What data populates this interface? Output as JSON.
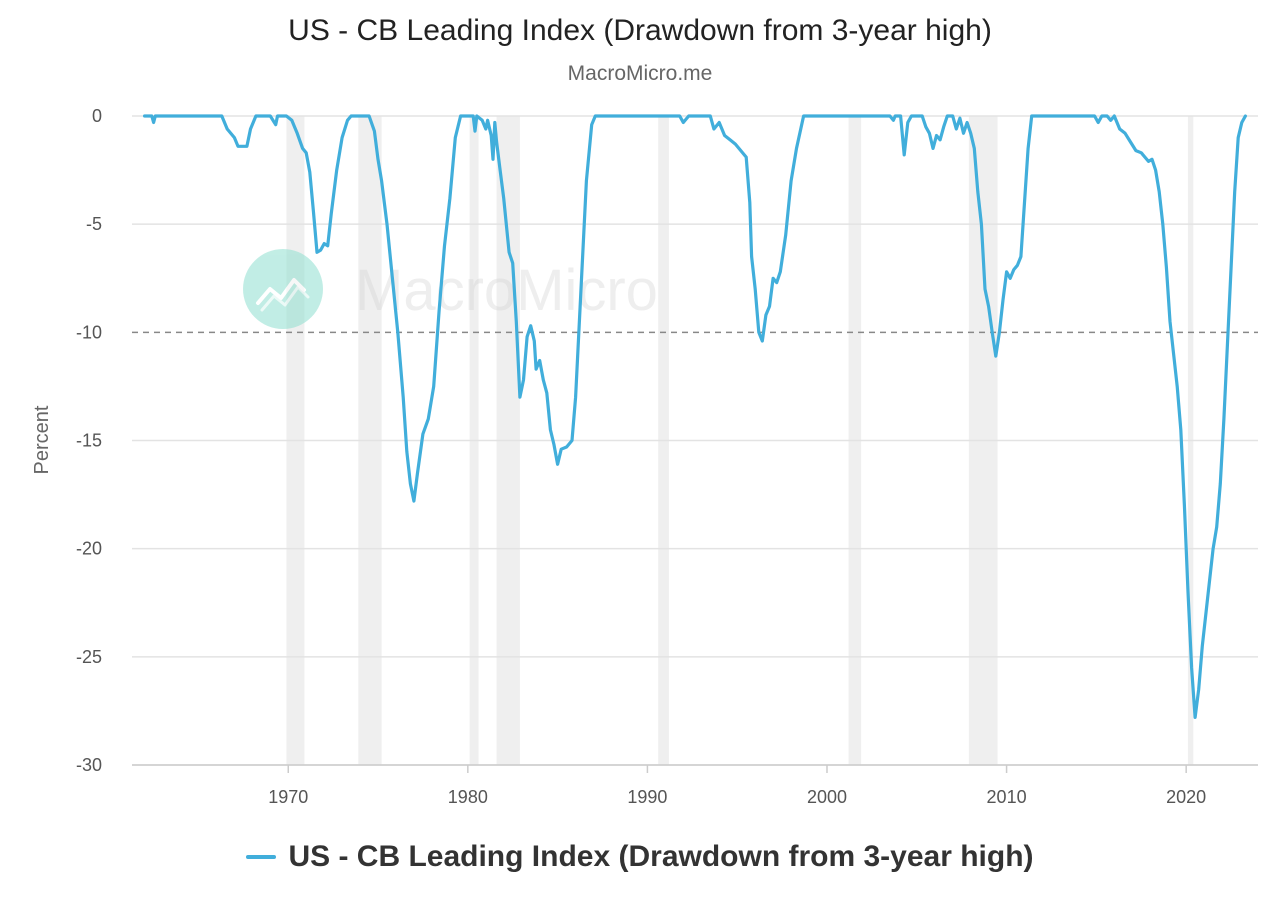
{
  "chart_data": {
    "type": "line",
    "title": "US - CB Leading Index (Drawdown from 3-year high)",
    "subtitle": "MacroMicro.me",
    "ylabel": "Percent",
    "xlabel": "",
    "xlim": [
      1961.3,
      2024.0
    ],
    "ylim": [
      -30,
      0
    ],
    "x_ticks": [
      1970,
      1980,
      1990,
      2000,
      2010,
      2020
    ],
    "x_tick_labels": [
      "1970",
      "1980",
      "1990",
      "2000",
      "2010",
      "2020"
    ],
    "y_ticks": [
      0,
      -5,
      -10,
      -15,
      -20,
      -25,
      -30
    ],
    "y_tick_labels": [
      "0",
      "-5",
      "-10",
      "-15",
      "-20",
      "-25",
      "-30"
    ],
    "grid": true,
    "legend_position": "bottom-center",
    "reference_line": {
      "y": -10,
      "style": "dashed"
    },
    "recessions": [
      [
        1969.9,
        1970.9
      ],
      [
        1973.9,
        1975.2
      ],
      [
        1980.1,
        1980.6
      ],
      [
        1981.6,
        1982.9
      ],
      [
        1990.6,
        1991.2
      ],
      [
        2001.2,
        2001.9
      ],
      [
        2007.9,
        2009.5
      ],
      [
        2020.1,
        2020.4
      ]
    ],
    "series": [
      {
        "name": "US - CB Leading Index (Drawdown from 3-year high)",
        "color": "#41aedb",
        "points": [
          [
            1962.0,
            0
          ],
          [
            1962.4,
            0
          ],
          [
            1962.5,
            -0.3
          ],
          [
            1962.6,
            0
          ],
          [
            1966.3,
            0
          ],
          [
            1966.6,
            -0.6
          ],
          [
            1967.0,
            -1.0
          ],
          [
            1967.2,
            -1.4
          ],
          [
            1967.7,
            -1.4
          ],
          [
            1967.9,
            -0.6
          ],
          [
            1968.2,
            0
          ],
          [
            1969.0,
            0
          ],
          [
            1969.3,
            -0.4
          ],
          [
            1969.4,
            0
          ],
          [
            1969.9,
            0
          ],
          [
            1970.2,
            -0.2
          ],
          [
            1970.5,
            -0.8
          ],
          [
            1970.8,
            -1.5
          ],
          [
            1971.0,
            -1.7
          ],
          [
            1971.2,
            -2.6
          ],
          [
            1971.4,
            -4.4
          ],
          [
            1971.6,
            -6.3
          ],
          [
            1971.8,
            -6.2
          ],
          [
            1972.0,
            -5.9
          ],
          [
            1972.2,
            -6.0
          ],
          [
            1972.4,
            -4.5
          ],
          [
            1972.7,
            -2.5
          ],
          [
            1973.0,
            -1.0
          ],
          [
            1973.3,
            -0.2
          ],
          [
            1973.5,
            0
          ],
          [
            1974.5,
            0
          ],
          [
            1974.8,
            -0.7
          ],
          [
            1975.0,
            -2.0
          ],
          [
            1975.2,
            -3.0
          ],
          [
            1975.5,
            -5.0
          ],
          [
            1975.8,
            -7.5
          ],
          [
            1976.1,
            -10.0
          ],
          [
            1976.4,
            -13.0
          ],
          [
            1976.6,
            -15.5
          ],
          [
            1976.8,
            -17.0
          ],
          [
            1977.0,
            -17.8
          ],
          [
            1977.2,
            -16.5
          ],
          [
            1977.5,
            -14.7
          ],
          [
            1977.8,
            -14.0
          ],
          [
            1978.1,
            -12.5
          ],
          [
            1978.4,
            -9.0
          ],
          [
            1978.7,
            -6.0
          ],
          [
            1979.0,
            -3.8
          ],
          [
            1979.3,
            -1.0
          ],
          [
            1979.6,
            0
          ],
          [
            1980.3,
            0
          ],
          [
            1980.4,
            -0.7
          ],
          [
            1980.5,
            0
          ],
          [
            1980.8,
            -0.2
          ],
          [
            1981.0,
            -0.6
          ],
          [
            1981.1,
            -0.2
          ],
          [
            1981.3,
            -0.9
          ],
          [
            1981.4,
            -2.0
          ],
          [
            1981.5,
            -0.3
          ],
          [
            1981.6,
            -1.2
          ],
          [
            1981.8,
            -2.5
          ],
          [
            1982.0,
            -3.8
          ],
          [
            1982.3,
            -6.3
          ],
          [
            1982.5,
            -6.8
          ],
          [
            1982.7,
            -9.5
          ],
          [
            1982.9,
            -13.0
          ],
          [
            1983.1,
            -12.2
          ],
          [
            1983.3,
            -10.2
          ],
          [
            1983.5,
            -9.7
          ],
          [
            1983.7,
            -10.4
          ],
          [
            1983.8,
            -11.7
          ],
          [
            1984.0,
            -11.3
          ],
          [
            1984.2,
            -12.2
          ],
          [
            1984.4,
            -12.8
          ],
          [
            1984.6,
            -14.5
          ],
          [
            1984.8,
            -15.2
          ],
          [
            1985.0,
            -16.1
          ],
          [
            1985.2,
            -15.4
          ],
          [
            1985.5,
            -15.3
          ],
          [
            1985.8,
            -15.0
          ],
          [
            1986.0,
            -13.0
          ],
          [
            1986.3,
            -8.0
          ],
          [
            1986.6,
            -3.0
          ],
          [
            1986.9,
            -0.4
          ],
          [
            1987.1,
            0
          ],
          [
            1991.8,
            0
          ],
          [
            1992.0,
            -0.3
          ],
          [
            1992.3,
            0
          ],
          [
            1993.0,
            0
          ],
          [
            1993.5,
            0
          ],
          [
            1993.7,
            -0.6
          ],
          [
            1994.0,
            -0.3
          ],
          [
            1994.3,
            -0.9
          ],
          [
            1994.6,
            -1.1
          ],
          [
            1994.9,
            -1.3
          ],
          [
            1995.2,
            -1.6
          ],
          [
            1995.5,
            -1.9
          ],
          [
            1995.7,
            -4.0
          ],
          [
            1995.8,
            -6.5
          ],
          [
            1996.0,
            -8.0
          ],
          [
            1996.2,
            -10.0
          ],
          [
            1996.4,
            -10.4
          ],
          [
            1996.6,
            -9.2
          ],
          [
            1996.8,
            -8.8
          ],
          [
            1997.0,
            -7.5
          ],
          [
            1997.2,
            -7.7
          ],
          [
            1997.4,
            -7.2
          ],
          [
            1997.7,
            -5.5
          ],
          [
            1998.0,
            -3.0
          ],
          [
            1998.3,
            -1.5
          ],
          [
            1998.7,
            0
          ],
          [
            1999.1,
            0
          ],
          [
            2003.5,
            0
          ],
          [
            2003.7,
            -0.2
          ],
          [
            2003.8,
            0
          ],
          [
            2004.1,
            0
          ],
          [
            2004.3,
            -1.8
          ],
          [
            2004.5,
            -0.3
          ],
          [
            2004.7,
            0
          ],
          [
            2005.3,
            0
          ],
          [
            2005.5,
            -0.5
          ],
          [
            2005.7,
            -0.8
          ],
          [
            2005.9,
            -1.5
          ],
          [
            2006.1,
            -0.9
          ],
          [
            2006.3,
            -1.1
          ],
          [
            2006.5,
            -0.5
          ],
          [
            2006.7,
            0
          ],
          [
            2007.0,
            0
          ],
          [
            2007.2,
            -0.6
          ],
          [
            2007.4,
            -0.1
          ],
          [
            2007.6,
            -0.8
          ],
          [
            2007.8,
            -0.3
          ],
          [
            2008.0,
            -0.8
          ],
          [
            2008.2,
            -1.5
          ],
          [
            2008.4,
            -3.5
          ],
          [
            2008.6,
            -5.0
          ],
          [
            2008.8,
            -8.0
          ],
          [
            2009.0,
            -8.8
          ],
          [
            2009.2,
            -10.0
          ],
          [
            2009.4,
            -11.1
          ],
          [
            2009.6,
            -10.0
          ],
          [
            2009.8,
            -8.5
          ],
          [
            2010.0,
            -7.2
          ],
          [
            2010.2,
            -7.5
          ],
          [
            2010.4,
            -7.1
          ],
          [
            2010.6,
            -6.9
          ],
          [
            2010.8,
            -6.5
          ],
          [
            2011.0,
            -4.0
          ],
          [
            2011.2,
            -1.5
          ],
          [
            2011.4,
            0
          ],
          [
            2014.9,
            0
          ],
          [
            2015.1,
            -0.3
          ],
          [
            2015.3,
            0
          ],
          [
            2015.6,
            0
          ],
          [
            2015.8,
            -0.2
          ],
          [
            2016.0,
            0
          ],
          [
            2016.3,
            -0.6
          ],
          [
            2016.6,
            -0.8
          ],
          [
            2016.9,
            -1.2
          ],
          [
            2017.2,
            -1.6
          ],
          [
            2017.5,
            -1.7
          ],
          [
            2017.7,
            -1.9
          ],
          [
            2017.9,
            -2.1
          ],
          [
            2018.1,
            -2.0
          ],
          [
            2018.3,
            -2.5
          ],
          [
            2018.5,
            -3.5
          ],
          [
            2018.7,
            -5.0
          ],
          [
            2018.9,
            -7.0
          ],
          [
            2019.1,
            -9.5
          ],
          [
            2019.3,
            -11.0
          ],
          [
            2019.5,
            -12.5
          ],
          [
            2019.7,
            -14.5
          ],
          [
            2019.9,
            -18.0
          ],
          [
            2020.1,
            -22.0
          ],
          [
            2020.3,
            -25.5
          ],
          [
            2020.5,
            -27.8
          ],
          [
            2020.7,
            -26.5
          ],
          [
            2020.9,
            -24.5
          ],
          [
            2021.1,
            -23.0
          ],
          [
            2021.3,
            -21.5
          ],
          [
            2021.5,
            -20.0
          ],
          [
            2021.7,
            -19.0
          ],
          [
            2021.9,
            -17.0
          ],
          [
            2022.1,
            -14.0
          ],
          [
            2022.3,
            -10.5
          ],
          [
            2022.5,
            -7.0
          ],
          [
            2022.7,
            -3.5
          ],
          [
            2022.9,
            -1.0
          ],
          [
            2023.1,
            -0.3
          ],
          [
            2023.3,
            0
          ]
        ]
      }
    ]
  }
}
